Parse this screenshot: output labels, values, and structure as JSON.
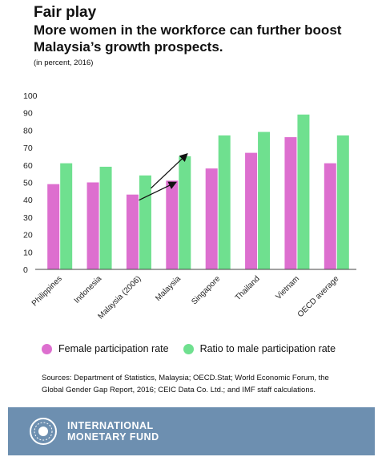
{
  "header": {
    "title": "Fair play",
    "subtitle": "More women in the workforce can further boost Malaysia’s growth prospects.",
    "note": "(in percent, 2016)"
  },
  "legend": {
    "female": "Female participation rate",
    "ratio": "Ratio to male participation rate"
  },
  "sources": "Sources: Department of Statistics, Malaysia; OECD.Stat; World Economic Forum, the Global Gender Gap Report, 2016; CEIC Data Co. Ltd.; and IMF staff calculations.",
  "footer": {
    "line1": "INTERNATIONAL",
    "line2": "MONETARY FUND"
  },
  "colors": {
    "female": "#dd6fcf",
    "ratio": "#6fe08f",
    "footer_bg": "#6d8fb0",
    "arrow": "#111111"
  },
  "chart_data": {
    "type": "bar",
    "categories": [
      "Philippines",
      "Indonesia",
      "Malaysia (2006)",
      "Malaysia",
      "Singapore",
      "Thailand",
      "Vietnam",
      "OECD average"
    ],
    "series": [
      {
        "name": "Female participation rate",
        "values": [
          49,
          50,
          43,
          51,
          58,
          67,
          76,
          61
        ]
      },
      {
        "name": "Ratio to male participation rate",
        "values": [
          61,
          59,
          54,
          65,
          77,
          79,
          89,
          77
        ]
      }
    ],
    "yticks": [
      0,
      10,
      20,
      30,
      40,
      50,
      60,
      70,
      80,
      90,
      100
    ],
    "ylim": [
      0,
      100
    ],
    "grid": false,
    "legend_position": "bottom",
    "annotations": [
      {
        "type": "arrow",
        "from": [
          "Malaysia (2006)",
          "Female participation rate"
        ],
        "to": [
          "Malaysia",
          "Female participation rate"
        ]
      },
      {
        "type": "arrow",
        "from": [
          "Malaysia (2006)",
          "Ratio to male participation rate"
        ],
        "to": [
          "Malaysia",
          "Ratio to male participation rate"
        ]
      }
    ]
  }
}
